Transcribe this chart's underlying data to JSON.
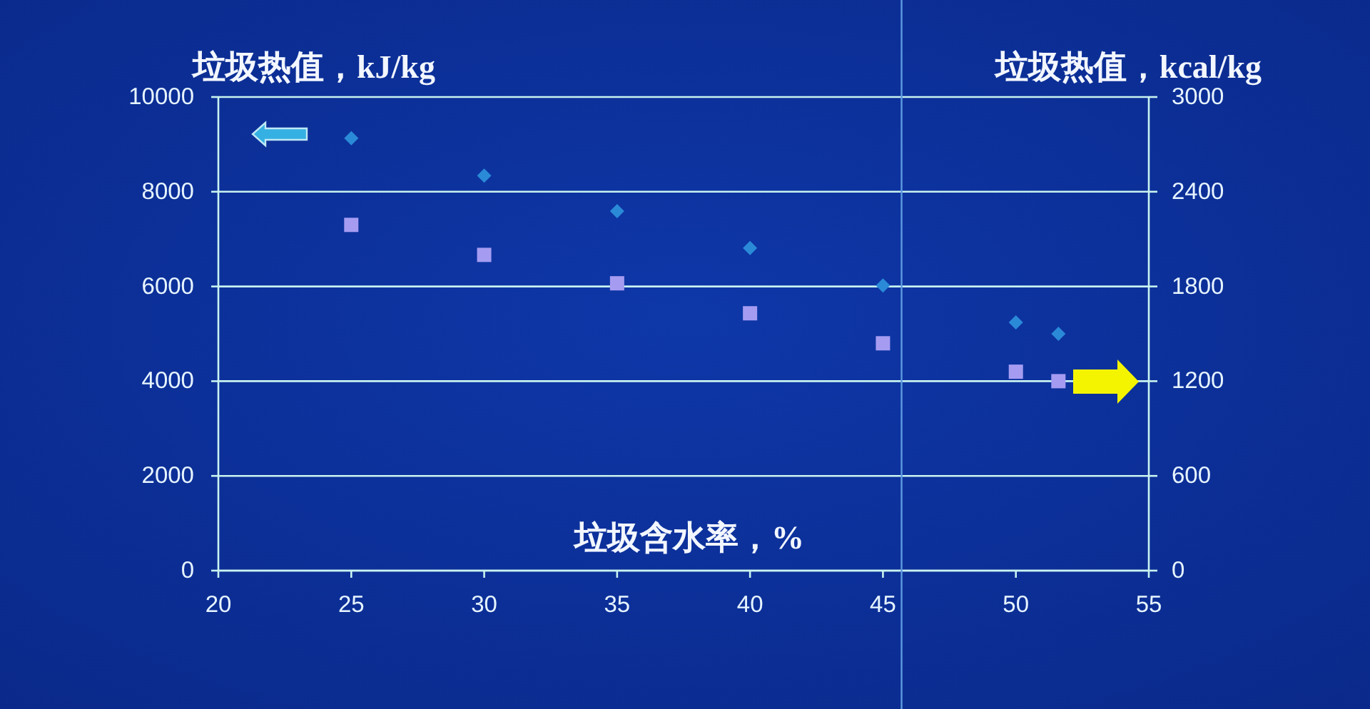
{
  "chart_data": {
    "type": "scatter",
    "ylabel": "垃圾热值，kJ/kg",
    "y2label": "垃圾热值，kcal/kg",
    "xlabel": "垃圾含水率，%",
    "x": [
      25,
      30,
      35,
      40,
      45,
      50,
      51.6
    ],
    "series": [
      {
        "color": "#2b8ad8",
        "marker": "diamond",
        "values": [
          9130,
          8340,
          7590,
          6810,
          6020,
          5240,
          5000
        ]
      },
      {
        "color": "#a59cf2",
        "marker": "square",
        "axis": "y2",
        "values": [
          2190,
          2000,
          1820,
          1630,
          1440,
          1260,
          1200
        ]
      }
    ],
    "xlim": [
      20,
      55
    ],
    "xticks": [
      20,
      25,
      30,
      35,
      40,
      45,
      50,
      55
    ],
    "ylim": [
      0,
      10000
    ],
    "yticks": [
      0,
      2000,
      4000,
      6000,
      8000,
      10000
    ],
    "y2lim": [
      0,
      3000
    ],
    "y2ticks": [
      0,
      600,
      1200,
      1800,
      2400,
      3000
    ],
    "grid": "y",
    "ref_lines": [
      {
        "axis": "x",
        "value": 45.7,
        "color": "#5f9be0"
      }
    ]
  }
}
